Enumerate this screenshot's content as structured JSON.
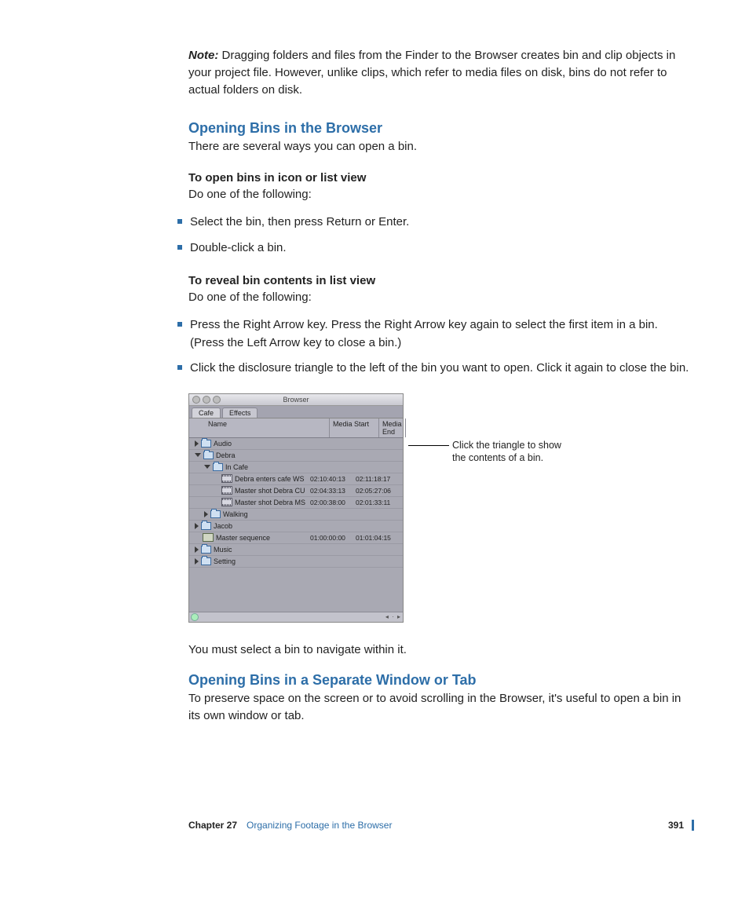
{
  "note": {
    "label": "Note:",
    "text": "Dragging folders and files from the Finder to the Browser creates bin and clip objects in your project file. However, unlike clips, which refer to media files on disk, bins do not refer to actual folders on disk."
  },
  "section1": {
    "heading": "Opening Bins in the Browser",
    "intro": "There are several ways you can open a bin.",
    "sub1_head": "To open bins in icon or list view",
    "sub1_text": "Do one of the following:",
    "bullets1": [
      "Select the bin, then press Return or Enter.",
      "Double-click a bin."
    ],
    "sub2_head": "To reveal bin contents in list view",
    "sub2_text": "Do one of the following:",
    "bullets2": [
      "Press the Right Arrow key. Press the Right Arrow key again to select the first item in a bin. (Press the Left Arrow key to close a bin.)",
      "Click the disclosure triangle to the left of the bin you want to open. Click it again to close the bin."
    ],
    "after_shot": "You must select a bin to navigate within it."
  },
  "screenshot": {
    "window_title": "Browser",
    "tabs": [
      "Cafe",
      "Effects"
    ],
    "columns": {
      "name": "Name",
      "media_start": "Media Start",
      "media_end": "Media End"
    },
    "rows": [
      {
        "indent": 0,
        "tri": "closed",
        "icon": "bin",
        "label": "Audio",
        "ms": "",
        "me": ""
      },
      {
        "indent": 0,
        "tri": "open",
        "icon": "bin",
        "label": "Debra",
        "ms": "",
        "me": ""
      },
      {
        "indent": 1,
        "tri": "open",
        "icon": "bin",
        "label": "In Cafe",
        "ms": "",
        "me": ""
      },
      {
        "indent": 2,
        "tri": "none",
        "icon": "clip",
        "label": "Debra enters cafe WS",
        "ms": "02:10:40:13",
        "me": "02:11:18:17"
      },
      {
        "indent": 2,
        "tri": "none",
        "icon": "clip",
        "label": "Master shot Debra CU",
        "ms": "02:04:33:13",
        "me": "02:05:27:06"
      },
      {
        "indent": 2,
        "tri": "none",
        "icon": "clip",
        "label": "Master shot Debra MS",
        "ms": "02:00:38:00",
        "me": "02:01:33:11"
      },
      {
        "indent": 1,
        "tri": "closed",
        "icon": "bin",
        "label": "Walking",
        "ms": "",
        "me": ""
      },
      {
        "indent": 0,
        "tri": "closed",
        "icon": "bin",
        "label": "Jacob",
        "ms": "",
        "me": ""
      },
      {
        "indent": 0,
        "tri": "none",
        "icon": "seq",
        "label": "Master sequence",
        "ms": "01:00:00:00",
        "me": "01:01:04:15"
      },
      {
        "indent": 0,
        "tri": "closed",
        "icon": "bin",
        "label": "Music",
        "ms": "",
        "me": ""
      },
      {
        "indent": 0,
        "tri": "closed",
        "icon": "bin",
        "label": "Setting",
        "ms": "",
        "me": ""
      }
    ],
    "callout": "Click the triangle to show the contents of a bin."
  },
  "section2": {
    "heading": "Opening Bins in a Separate Window or Tab",
    "intro": "To preserve space on the screen or to avoid scrolling in the Browser, it's useful to open a bin in its own window or tab."
  },
  "footer": {
    "chapter": "Chapter 27",
    "title": "Organizing Footage in the Browser",
    "page": "391"
  },
  "colors": {
    "accent": "#2d6ea8",
    "text": "#222222",
    "shot_bg": "#a9a9b3"
  }
}
